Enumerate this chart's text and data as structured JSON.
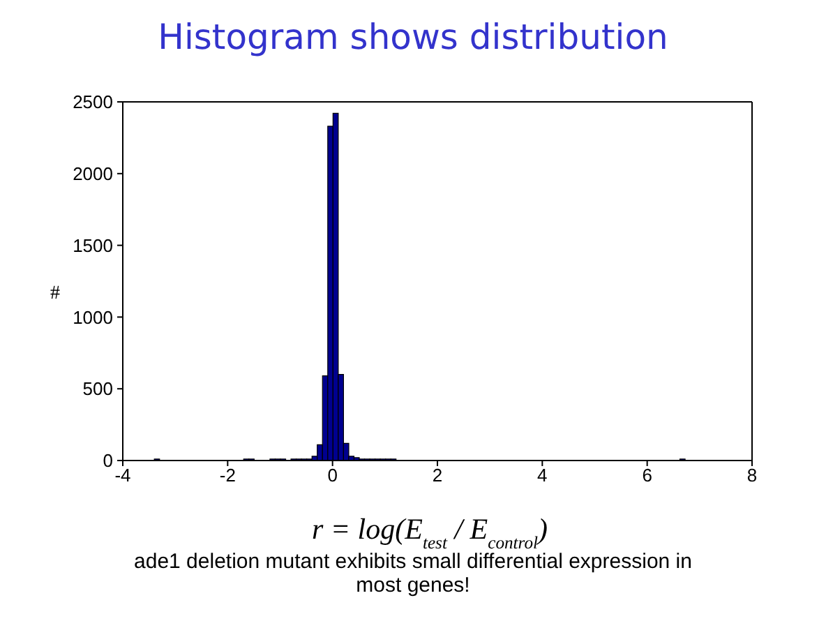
{
  "chart_data": {
    "type": "histogram",
    "title": "Histogram shows distribution",
    "xlabel": "r = log(E$_{test}$ / E$_{control}$)",
    "ylabel": "#",
    "annotations": [
      "ade1 deletion mutant exhibits small differential expression in most genes!"
    ],
    "bins": [
      -3.5,
      -3.4,
      -3.3,
      -3.2,
      -3.1,
      -3.0,
      -2.9,
      -2.8,
      -2.7,
      -2.6,
      -2.5,
      -2.4,
      -2.3,
      -2.2,
      -2.1,
      -2.0,
      -1.9,
      -1.8,
      -1.7,
      -1.6,
      -1.5,
      -1.4,
      -1.3,
      -1.2,
      -1.1,
      -1.0,
      -0.9,
      -0.8,
      -0.7,
      -0.6,
      -0.5,
      -0.4,
      -0.3,
      -0.2,
      -0.1,
      0.0,
      0.1,
      0.2,
      0.3,
      0.4,
      0.5,
      0.6,
      0.7,
      0.8,
      0.9,
      1.0,
      1.1,
      1.2,
      1.3,
      1.4,
      1.5,
      1.6,
      1.7,
      1.8,
      1.9,
      2.0,
      2.1,
      2.2,
      2.3,
      2.4,
      2.5,
      2.6,
      2.7,
      2.8,
      2.9,
      3.0,
      3.1,
      3.2,
      3.3,
      3.4,
      3.5,
      3.6,
      3.7,
      3.8,
      3.9,
      4.0,
      4.1,
      4.2,
      4.3,
      4.4,
      4.5,
      4.6,
      4.7,
      4.8,
      4.9,
      5.0,
      5.1,
      5.2,
      5.3,
      5.4,
      5.5,
      5.6,
      5.7,
      5.8,
      5.9,
      6.0,
      6.1,
      6.2,
      6.3,
      6.4,
      6.5,
      6.6,
      6.7
    ],
    "values": [
      0,
      10,
      0,
      0,
      0,
      0,
      0,
      0,
      0,
      0,
      0,
      0,
      0,
      0,
      0,
      0,
      0,
      0,
      10,
      10,
      0,
      0,
      0,
      10,
      10,
      10,
      0,
      10,
      10,
      10,
      10,
      30,
      110,
      590,
      2330,
      2420,
      600,
      120,
      30,
      20,
      10,
      10,
      10,
      10,
      10,
      10,
      10,
      0,
      0,
      0,
      0,
      0,
      0,
      0,
      0,
      0,
      0,
      0,
      0,
      0,
      0,
      0,
      0,
      0,
      0,
      0,
      0,
      0,
      0,
      0,
      0,
      0,
      0,
      0,
      0,
      0,
      0,
      0,
      0,
      0,
      0,
      0,
      0,
      0,
      0,
      0,
      0,
      0,
      0,
      0,
      0,
      0,
      0,
      0,
      0,
      0,
      0,
      0,
      0,
      0,
      0,
      10
    ],
    "color": "#00008f",
    "xlim": [
      -4,
      8
    ],
    "xticks": [
      -4,
      -2,
      0,
      2,
      4,
      6,
      8
    ],
    "ylim": [
      0,
      2500
    ],
    "yticks": [
      0,
      500,
      1000,
      1500,
      2000,
      2500
    ]
  }
}
